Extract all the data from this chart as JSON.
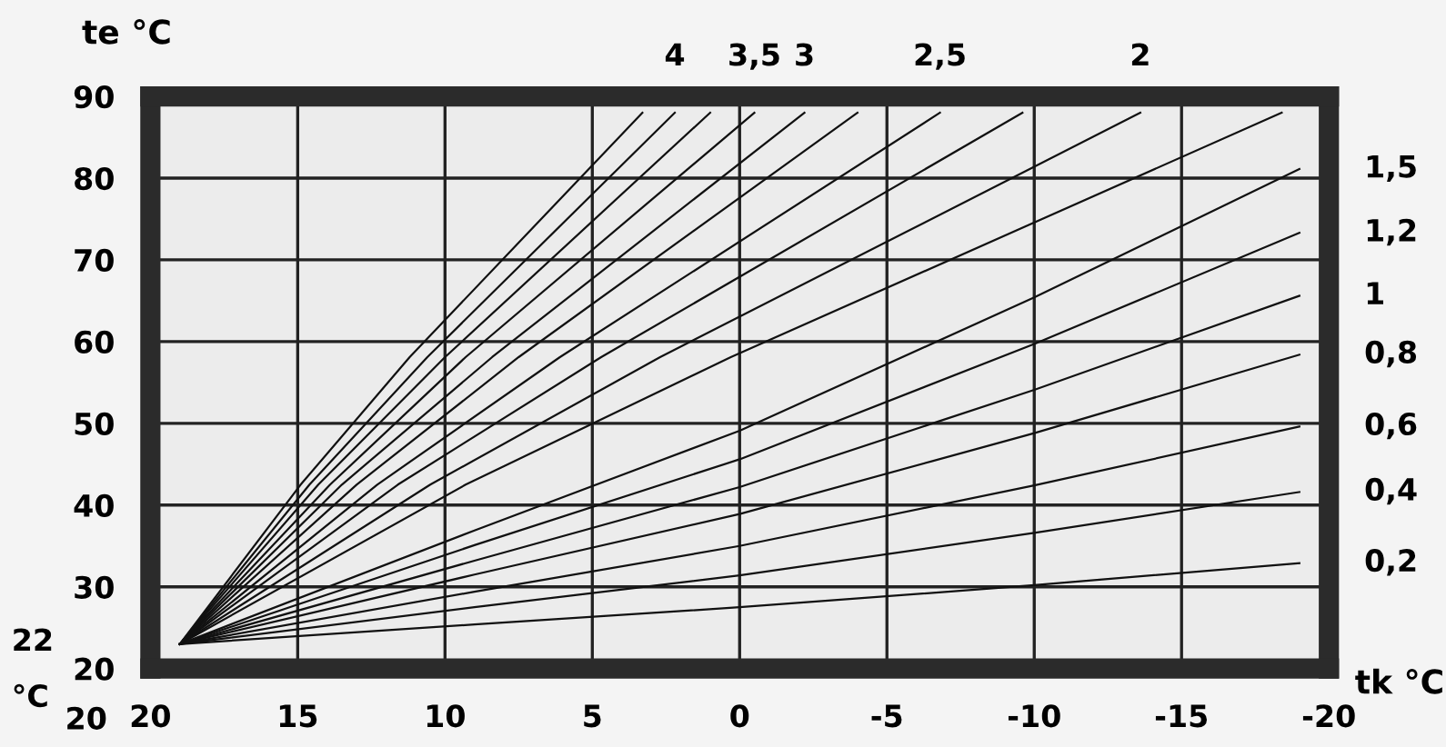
{
  "chart_data": {
    "type": "line",
    "xlabel": "tk °C",
    "ylabel": "te °C",
    "xlim": [
      20,
      -20
    ],
    "ylim": [
      20,
      90
    ],
    "xticks": [
      20,
      15,
      10,
      5,
      0,
      -5,
      -10,
      -15,
      -20
    ],
    "yticks": [
      20,
      30,
      40,
      50,
      60,
      70,
      80,
      90
    ],
    "grid": true,
    "legend": false,
    "series": [
      {
        "name": "0,2",
        "color": "#111111",
        "x": [
          19,
          9,
          0,
          -10,
          -19
        ],
        "values": [
          23,
          25.4,
          27.5,
          30.2,
          32.9
        ]
      },
      {
        "name": "0,4",
        "color": "#111111",
        "x": [
          19,
          9,
          0,
          -10,
          -19
        ],
        "values": [
          23,
          27.5,
          31.4,
          36.6,
          41.6
        ]
      },
      {
        "name": "0,6",
        "color": "#111111",
        "x": [
          19,
          9,
          0,
          -10,
          -19
        ],
        "values": [
          23,
          29.4,
          35.0,
          42.4,
          49.6
        ]
      },
      {
        "name": "0,8",
        "color": "#111111",
        "x": [
          19,
          9,
          0,
          -10,
          -19
        ],
        "values": [
          23,
          31.5,
          38.9,
          48.8,
          58.4
        ]
      },
      {
        "name": "1",
        "color": "#111111",
        "x": [
          19,
          9,
          0,
          -10,
          -19
        ],
        "values": [
          23,
          33.2,
          42.2,
          54.1,
          65.6
        ]
      },
      {
        "name": "1,2",
        "color": "#111111",
        "x": [
          19,
          9,
          0,
          -10,
          -19
        ],
        "values": [
          23,
          35.1,
          45.6,
          59.7,
          73.3
        ]
      },
      {
        "name": "1,5",
        "color": "#111111",
        "x": [
          19,
          9,
          0,
          -10,
          -19
        ],
        "values": [
          23,
          36.9,
          49.1,
          65.4,
          81.1
        ]
      },
      {
        "color": "#111111",
        "x": [
          19,
          9.3,
          0.3,
          -18.4
        ],
        "values": [
          23,
          42.5,
          58.1,
          88
        ]
      },
      {
        "name": "2",
        "color": "#111111",
        "x": [
          19,
          10.5,
          2.7,
          -13.6
        ],
        "values": [
          23,
          42.5,
          58.1,
          88
        ]
      },
      {
        "color": "#111111",
        "x": [
          19,
          11.6,
          4.7,
          -9.6
        ],
        "values": [
          23,
          42.5,
          58.1,
          88
        ]
      },
      {
        "name": "2,5",
        "color": "#111111",
        "x": [
          19,
          12.3,
          6.1,
          -6.8
        ],
        "values": [
          23,
          42.5,
          58.1,
          88
        ]
      },
      {
        "color": "#111111",
        "x": [
          19,
          13.0,
          7.5,
          -4.0
        ],
        "values": [
          23,
          42.5,
          58.1,
          88
        ]
      },
      {
        "name": "3",
        "color": "#111111",
        "x": [
          19,
          13.5,
          8.4,
          -2.2
        ],
        "values": [
          23,
          42.5,
          58.1,
          88
        ]
      },
      {
        "name": "3,5",
        "color": "#111111",
        "x": [
          19,
          13.9,
          9.3,
          -0.5
        ],
        "values": [
          23,
          42.5,
          58.1,
          88
        ]
      },
      {
        "color": "#111111",
        "x": [
          19,
          14.3,
          10.0,
          1.0
        ],
        "values": [
          23,
          42.5,
          58.1,
          88
        ]
      },
      {
        "name": "4",
        "color": "#111111",
        "x": [
          19,
          14.6,
          10.6,
          2.2
        ],
        "values": [
          23,
          42.5,
          58.1,
          88
        ]
      },
      {
        "color": "#111111",
        "x": [
          19,
          14.9,
          11.2,
          3.3
        ],
        "values": [
          23,
          42.5,
          58.1,
          88
        ]
      }
    ],
    "annotations": [
      "22",
      "20",
      "°C"
    ]
  }
}
